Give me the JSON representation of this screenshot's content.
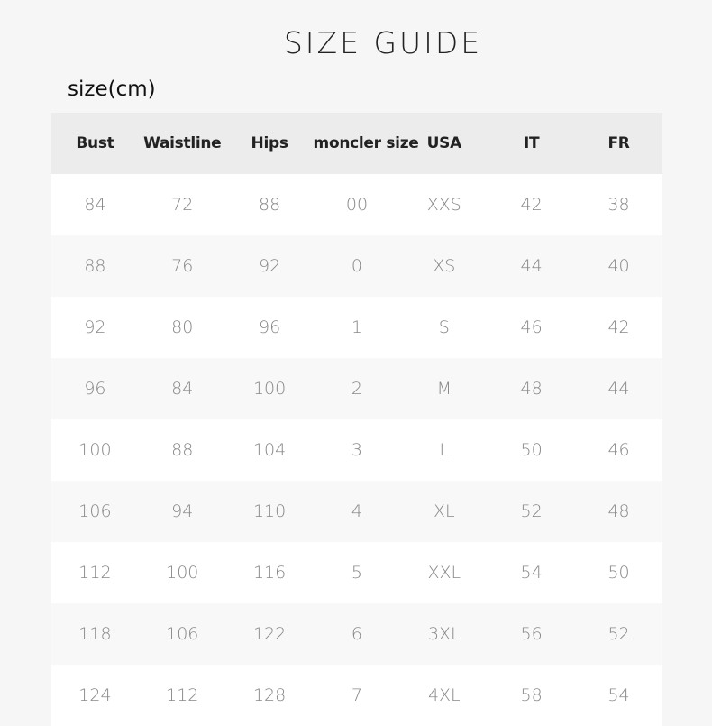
{
  "title": "SIZE GUIDE",
  "unit_label": "size(cm)",
  "headers": [
    "Bust",
    "Waistline",
    "Hips",
    "moncler size",
    "USA",
    "IT",
    "FR"
  ],
  "rows": [
    [
      "84",
      "72",
      "88",
      "00",
      "XXS",
      "42",
      "38"
    ],
    [
      "88",
      "76",
      "92",
      "0",
      "XS",
      "44",
      "40"
    ],
    [
      "92",
      "80",
      "96",
      "1",
      "S",
      "46",
      "42"
    ],
    [
      "96",
      "84",
      "100",
      "2",
      "M",
      "48",
      "44"
    ],
    [
      "100",
      "88",
      "104",
      "3",
      "L",
      "50",
      "46"
    ],
    [
      "106",
      "94",
      "110",
      "4",
      "XL",
      "52",
      "48"
    ],
    [
      "112",
      "100",
      "116",
      "5",
      "XXL",
      "54",
      "50"
    ],
    [
      "118",
      "106",
      "122",
      "6",
      "3XL",
      "56",
      "52"
    ],
    [
      "124",
      "112",
      "128",
      "7",
      "4XL",
      "58",
      "54"
    ]
  ]
}
